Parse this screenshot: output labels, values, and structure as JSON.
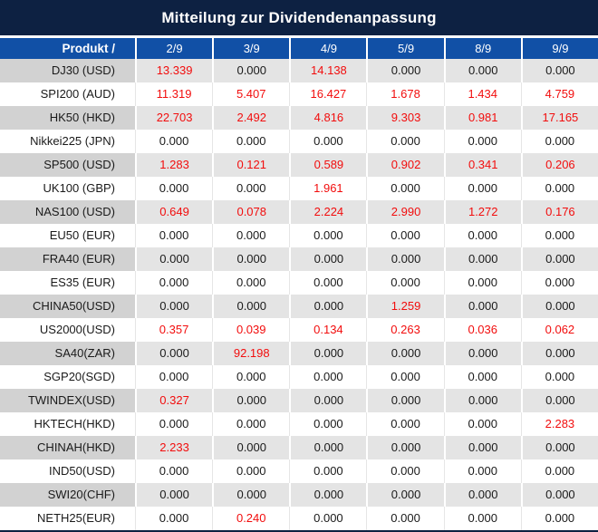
{
  "title": "Mitteilung zur Dividendenanpassung",
  "colors": {
    "title_bar_bg": "#0d2142",
    "header_bg": "#1150a6",
    "shaded_label_bg": "#d2d2d2",
    "shaded_value_bg": "#e4e4e4",
    "plain_row_bg": "#ffffff",
    "value_red": "#f20d0d",
    "text_black": "#1a1a1a"
  },
  "table": {
    "product_header": "Produkt /",
    "date_columns": [
      "2/9",
      "3/9",
      "4/9",
      "5/9",
      "8/9",
      "9/9"
    ],
    "rows": [
      {
        "product": "DJ30 (USD)",
        "values": [
          "13.339",
          "0.000",
          "14.138",
          "0.000",
          "0.000",
          "0.000"
        ]
      },
      {
        "product": "SPI200 (AUD)",
        "values": [
          "11.319",
          "5.407",
          "16.427",
          "1.678",
          "1.434",
          "4.759"
        ]
      },
      {
        "product": "HK50 (HKD)",
        "values": [
          "22.703",
          "2.492",
          "4.816",
          "9.303",
          "0.981",
          "17.165"
        ]
      },
      {
        "product": "Nikkei225 (JPN)",
        "values": [
          "0.000",
          "0.000",
          "0.000",
          "0.000",
          "0.000",
          "0.000"
        ]
      },
      {
        "product": "SP500 (USD)",
        "values": [
          "1.283",
          "0.121",
          "0.589",
          "0.902",
          "0.341",
          "0.206"
        ]
      },
      {
        "product": "UK100 (GBP)",
        "values": [
          "0.000",
          "0.000",
          "1.961",
          "0.000",
          "0.000",
          "0.000"
        ]
      },
      {
        "product": "NAS100 (USD)",
        "values": [
          "0.649",
          "0.078",
          "2.224",
          "2.990",
          "1.272",
          "0.176"
        ]
      },
      {
        "product": "EU50 (EUR)",
        "values": [
          "0.000",
          "0.000",
          "0.000",
          "0.000",
          "0.000",
          "0.000"
        ]
      },
      {
        "product": "FRA40 (EUR)",
        "values": [
          "0.000",
          "0.000",
          "0.000",
          "0.000",
          "0.000",
          "0.000"
        ]
      },
      {
        "product": "ES35 (EUR)",
        "values": [
          "0.000",
          "0.000",
          "0.000",
          "0.000",
          "0.000",
          "0.000"
        ]
      },
      {
        "product": "CHINA50(USD)",
        "values": [
          "0.000",
          "0.000",
          "0.000",
          "1.259",
          "0.000",
          "0.000"
        ]
      },
      {
        "product": "US2000(USD)",
        "values": [
          "0.357",
          "0.039",
          "0.134",
          "0.263",
          "0.036",
          "0.062"
        ]
      },
      {
        "product": "SA40(ZAR)",
        "values": [
          "0.000",
          "92.198",
          "0.000",
          "0.000",
          "0.000",
          "0.000"
        ]
      },
      {
        "product": "SGP20(SGD)",
        "values": [
          "0.000",
          "0.000",
          "0.000",
          "0.000",
          "0.000",
          "0.000"
        ]
      },
      {
        "product": "TWINDEX(USD)",
        "values": [
          "0.327",
          "0.000",
          "0.000",
          "0.000",
          "0.000",
          "0.000"
        ]
      },
      {
        "product": "HKTECH(HKD)",
        "values": [
          "0.000",
          "0.000",
          "0.000",
          "0.000",
          "0.000",
          "2.283"
        ]
      },
      {
        "product": "CHINAH(HKD)",
        "values": [
          "2.233",
          "0.000",
          "0.000",
          "0.000",
          "0.000",
          "0.000"
        ]
      },
      {
        "product": "IND50(USD)",
        "values": [
          "0.000",
          "0.000",
          "0.000",
          "0.000",
          "0.000",
          "0.000"
        ]
      },
      {
        "product": "SWI20(CHF)",
        "values": [
          "0.000",
          "0.000",
          "0.000",
          "0.000",
          "0.000",
          "0.000"
        ]
      },
      {
        "product": "NETH25(EUR)",
        "values": [
          "0.000",
          "0.240",
          "0.000",
          "0.000",
          "0.000",
          "0.000"
        ]
      }
    ]
  }
}
